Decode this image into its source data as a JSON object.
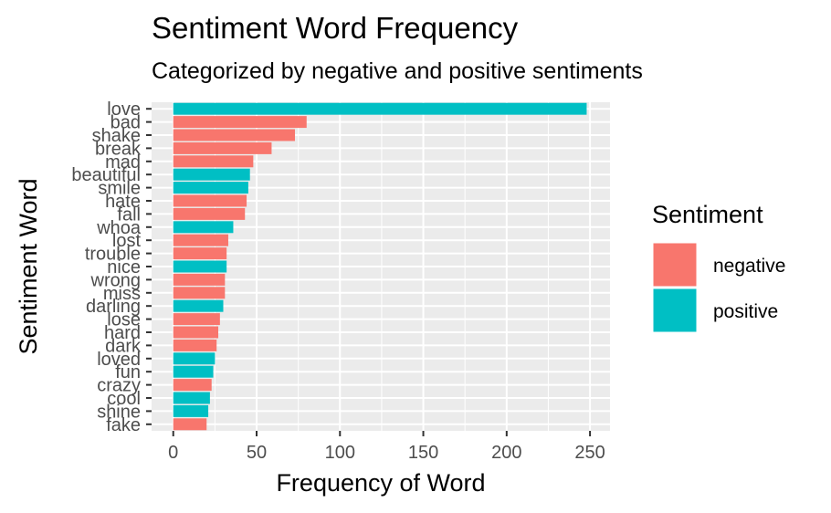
{
  "chart_data": {
    "type": "bar",
    "orientation": "horizontal",
    "title": "Sentiment Word Frequency",
    "subtitle": "Categorized by negative and positive sentiments",
    "xlabel": "Frequency of Word",
    "ylabel": "Sentiment Word",
    "xlim": [
      -13,
      262
    ],
    "xticks": [
      0,
      50,
      100,
      150,
      200,
      250
    ],
    "grid": true,
    "legend": {
      "title": "Sentiment",
      "position": "right",
      "items": [
        {
          "label": "negative",
          "color": "#F8766D"
        },
        {
          "label": "positive",
          "color": "#00BFC4"
        }
      ]
    },
    "bars": [
      {
        "word": "love",
        "value": 248,
        "sentiment": "positive"
      },
      {
        "word": "bad",
        "value": 80,
        "sentiment": "negative"
      },
      {
        "word": "shake",
        "value": 73,
        "sentiment": "negative"
      },
      {
        "word": "break",
        "value": 59,
        "sentiment": "negative"
      },
      {
        "word": "mad",
        "value": 48,
        "sentiment": "negative"
      },
      {
        "word": "beautiful",
        "value": 46,
        "sentiment": "positive"
      },
      {
        "word": "smile",
        "value": 45,
        "sentiment": "positive"
      },
      {
        "word": "hate",
        "value": 44,
        "sentiment": "negative"
      },
      {
        "word": "fall",
        "value": 43,
        "sentiment": "negative"
      },
      {
        "word": "whoa",
        "value": 36,
        "sentiment": "positive"
      },
      {
        "word": "lost",
        "value": 33,
        "sentiment": "negative"
      },
      {
        "word": "trouble",
        "value": 32,
        "sentiment": "negative"
      },
      {
        "word": "nice",
        "value": 32,
        "sentiment": "positive"
      },
      {
        "word": "wrong",
        "value": 31,
        "sentiment": "negative"
      },
      {
        "word": "miss",
        "value": 31,
        "sentiment": "negative"
      },
      {
        "word": "darling",
        "value": 30,
        "sentiment": "positive"
      },
      {
        "word": "lose",
        "value": 28,
        "sentiment": "negative"
      },
      {
        "word": "hard",
        "value": 27,
        "sentiment": "negative"
      },
      {
        "word": "dark",
        "value": 26,
        "sentiment": "negative"
      },
      {
        "word": "loved",
        "value": 25,
        "sentiment": "positive"
      },
      {
        "word": "fun",
        "value": 24,
        "sentiment": "positive"
      },
      {
        "word": "crazy",
        "value": 23,
        "sentiment": "negative"
      },
      {
        "word": "cool",
        "value": 22,
        "sentiment": "positive"
      },
      {
        "word": "shine",
        "value": 21,
        "sentiment": "positive"
      },
      {
        "word": "fake",
        "value": 20,
        "sentiment": "negative"
      }
    ]
  }
}
